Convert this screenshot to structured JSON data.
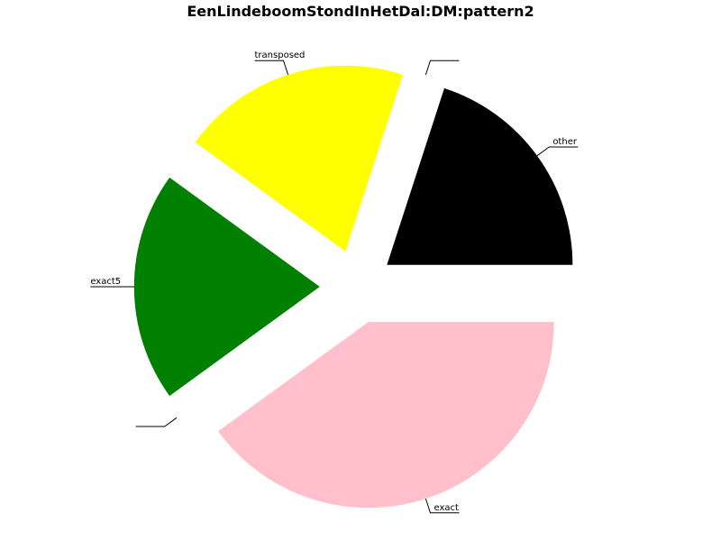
{
  "chart_data": {
    "type": "pie",
    "title": "EenLindeboomStondInHetDal:DM:pattern2",
    "start_angle_deg": 0,
    "direction": "counterclockwise",
    "slices": [
      {
        "label": "other",
        "value": 20,
        "color": "#000000",
        "explode": 0.2
      },
      {
        "label": "",
        "value": 0,
        "color": "#000000",
        "explode": 0.2
      },
      {
        "label": "transposed",
        "value": 20,
        "color": "#ffff00",
        "explode": 0.2
      },
      {
        "label": "exact5",
        "value": 20,
        "color": "#008000",
        "explode": 0.2
      },
      {
        "label": "",
        "value": 0,
        "color": "#000000",
        "explode": 0.2
      },
      {
        "label": "exact",
        "value": 40,
        "color": "#ffc0cb",
        "explode": 0.2
      }
    ]
  }
}
